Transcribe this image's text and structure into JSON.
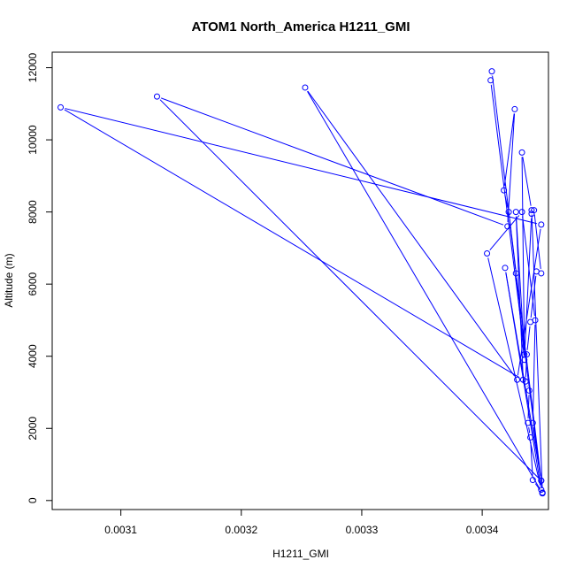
{
  "chart_data": {
    "type": "line",
    "title": "ATOM1 North_America H1211_GMI",
    "xlabel": "H1211_GMI",
    "ylabel": "Altitude (m)",
    "xlim": [
      0.003043,
      0.003455
    ],
    "ylim": [
      -250,
      12430
    ],
    "xticks": [
      0.0031,
      0.0032,
      0.0033,
      0.0034
    ],
    "xtick_labels": [
      "0.0031",
      "0.0032",
      "0.0033",
      "0.0034"
    ],
    "yticks": [
      0,
      2000,
      4000,
      6000,
      8000,
      10000,
      12000
    ],
    "ytick_labels": [
      "0",
      "2000",
      "4000",
      "6000",
      "8000",
      "10000",
      "12000"
    ],
    "grid": false,
    "marker": "open-circle",
    "color": "#0000ff",
    "series": [
      {
        "x": [
          0.00345,
          0.003442,
          0.00344,
          0.003438,
          0.003439,
          0.003436,
          0.003437,
          0.00344,
          0.003445,
          0.003449,
          0.003443,
          0.003441,
          0.003435,
          0.003428,
          0.003422,
          0.003418,
          0.003427,
          0.003421,
          0.00313,
          0.003449,
          0.003442,
          0.003444,
          0.003433,
          0.003404,
          0.003449,
          0.003419,
          0.003449,
          0.003408,
          0.003407,
          0.00345,
          0.003441,
          0.003433,
          0.003435,
          0.003428,
          0.003434,
          0.00305,
          0.003449,
          0.003429,
          0.003253,
          0.00345
        ],
        "y": [
          200,
          570,
          1750,
          2150,
          3050,
          3300,
          4050,
          4950,
          6350,
          6300,
          8050,
          7950,
          3900,
          6300,
          8000,
          8600,
          10850,
          7600,
          11200,
          550,
          2150,
          5000,
          8000,
          6850,
          300,
          6450,
          550,
          11900,
          11650,
          220,
          8050,
          9650,
          4050,
          8000,
          3350,
          10900,
          7650,
          3350,
          11450,
          200
        ]
      }
    ]
  }
}
